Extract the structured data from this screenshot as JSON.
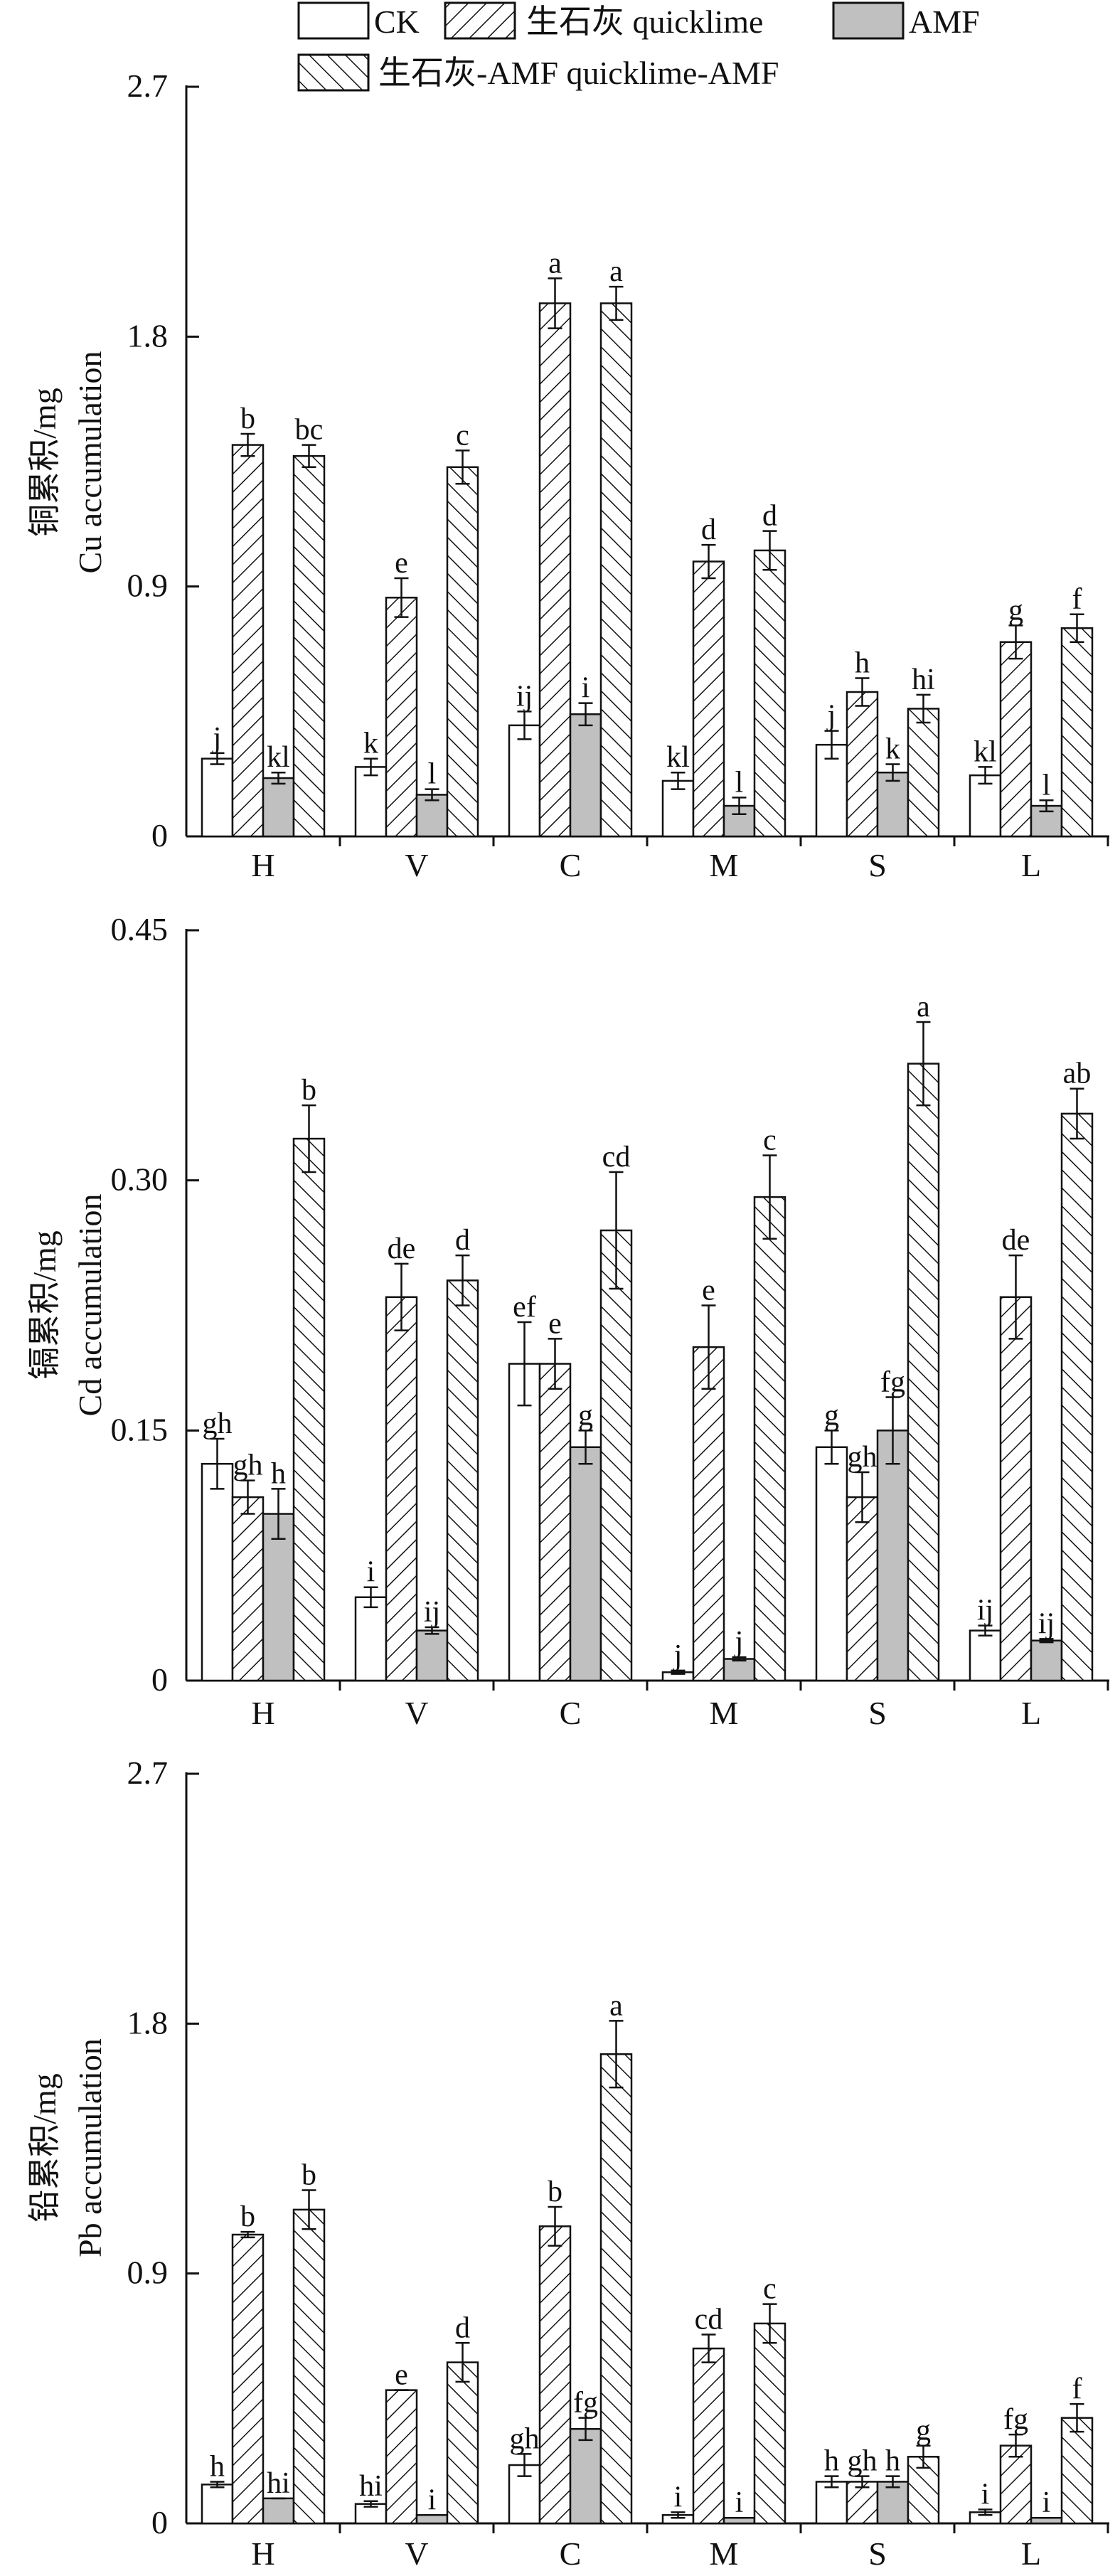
{
  "legend": {
    "items": [
      {
        "label": "CK",
        "fill": "white"
      },
      {
        "label": "生石灰 quicklime",
        "fill": "hatch-forward"
      },
      {
        "label": "AMF",
        "fill": "#c0c0c0"
      },
      {
        "label": "生石灰-AMF quicklime-AMF",
        "fill": "hatch-back"
      }
    ]
  },
  "colors": {
    "axis": "#111111",
    "amf": "#c0c0c0",
    "bar_stroke": "#111111"
  },
  "chart_data": [
    {
      "type": "bar",
      "ylabel_cn": "铜累积/mg",
      "ylabel_en": "Cu accumulation",
      "ylim": [
        0,
        2.7
      ],
      "yticks": [
        0,
        0.9,
        1.8,
        2.7
      ],
      "ytick_labels": [
        "0",
        "0.9",
        "1.8",
        "2.7"
      ],
      "categories": [
        "H",
        "V",
        "C",
        "M",
        "S",
        "L"
      ],
      "series": [
        {
          "name": "CK",
          "values": [
            0.28,
            0.25,
            0.4,
            0.2,
            0.33,
            0.22
          ],
          "errors": [
            0.02,
            0.03,
            0.05,
            0.03,
            0.05,
            0.03
          ],
          "letters": [
            "j",
            "k",
            "ij",
            "kl",
            "j",
            "kl"
          ]
        },
        {
          "name": "生石灰 quicklime",
          "values": [
            1.41,
            0.86,
            1.92,
            0.99,
            0.52,
            0.7
          ],
          "errors": [
            0.04,
            0.07,
            0.09,
            0.06,
            0.05,
            0.06
          ],
          "letters": [
            "b",
            "e",
            "a",
            "d",
            "h",
            "g"
          ]
        },
        {
          "name": "AMF",
          "values": [
            0.21,
            0.15,
            0.44,
            0.11,
            0.23,
            0.11
          ],
          "errors": [
            0.02,
            0.02,
            0.04,
            0.03,
            0.03,
            0.02
          ],
          "letters": [
            "kl",
            "l",
            "i",
            "l",
            "k",
            "l"
          ]
        },
        {
          "name": "生石灰-AMF quicklime-AMF",
          "values": [
            1.37,
            1.33,
            1.92,
            1.03,
            0.46,
            0.75
          ],
          "errors": [
            0.04,
            0.06,
            0.06,
            0.07,
            0.05,
            0.05
          ],
          "letters": [
            "bc",
            "c",
            "a",
            "d",
            "hi",
            "f"
          ]
        }
      ]
    },
    {
      "type": "bar",
      "ylabel_cn": "镉累积/mg",
      "ylabel_en": "Cd accumulation",
      "ylim": [
        0,
        0.45
      ],
      "yticks": [
        0,
        0.15,
        0.3,
        0.45
      ],
      "ytick_labels": [
        "0",
        "0.15",
        "0.30",
        "0.45"
      ],
      "categories": [
        "H",
        "V",
        "C",
        "M",
        "S",
        "L"
      ],
      "series": [
        {
          "name": "CK",
          "values": [
            0.13,
            0.05,
            0.19,
            0.005,
            0.14,
            0.03
          ],
          "errors": [
            0.015,
            0.006,
            0.025,
            0.001,
            0.01,
            0.003
          ],
          "letters": [
            "gh",
            "i",
            "ef",
            "j",
            "g",
            "ij"
          ]
        },
        {
          "name": "生石灰 quicklime",
          "values": [
            0.11,
            0.23,
            0.19,
            0.2,
            0.11,
            0.23
          ],
          "errors": [
            0.01,
            0.02,
            0.015,
            0.025,
            0.015,
            0.025
          ],
          "letters": [
            "gh",
            "de",
            "e",
            "e",
            "gh",
            "de"
          ]
        },
        {
          "name": "AMF",
          "values": [
            0.1,
            0.03,
            0.14,
            0.013,
            0.15,
            0.024
          ],
          "errors": [
            0.015,
            0.002,
            0.01,
            0.001,
            0.02,
            0.001
          ],
          "letters": [
            "h",
            "ij",
            "g",
            "j",
            "fg",
            "ij"
          ]
        },
        {
          "name": "生石灰-AMF quicklime-AMF",
          "values": [
            0.325,
            0.24,
            0.27,
            0.29,
            0.37,
            0.34
          ],
          "errors": [
            0.02,
            0.015,
            0.035,
            0.025,
            0.025,
            0.015
          ],
          "letters": [
            "b",
            "d",
            "cd",
            "c",
            "a",
            "ab"
          ]
        }
      ]
    },
    {
      "type": "bar",
      "ylabel_cn": "铅累积/mg",
      "ylabel_en": "Pb accumulation",
      "ylim": [
        0,
        2.7
      ],
      "yticks": [
        0,
        0.9,
        1.8,
        2.7
      ],
      "ytick_labels": [
        "0",
        "0.9",
        "1.8",
        "2.7"
      ],
      "categories": [
        "H",
        "V",
        "C",
        "M",
        "S",
        "L"
      ],
      "series": [
        {
          "name": "CK",
          "values": [
            0.14,
            0.07,
            0.21,
            0.03,
            0.15,
            0.04
          ],
          "errors": [
            0.01,
            0.01,
            0.04,
            0.01,
            0.02,
            0.01
          ],
          "letters": [
            "h",
            "hi",
            "gh",
            "i",
            "h",
            "i"
          ]
        },
        {
          "name": "生石灰 quicklime",
          "values": [
            1.04,
            0.48,
            1.07,
            0.63,
            0.15,
            0.28
          ],
          "errors": [
            0.01,
            0.0,
            0.07,
            0.05,
            0.02,
            0.04
          ],
          "letters": [
            "b",
            "e",
            "b",
            "cd",
            "gh",
            "fg"
          ]
        },
        {
          "name": "AMF",
          "values": [
            0.09,
            0.03,
            0.34,
            0.02,
            0.15,
            0.02
          ],
          "errors": [
            0.0,
            0.0,
            0.04,
            0.0,
            0.02,
            0.0
          ],
          "letters": [
            "hi",
            "i",
            "fg",
            "i",
            "h",
            "i"
          ]
        },
        {
          "name": "生石灰-AMF quicklime-AMF",
          "values": [
            1.13,
            0.58,
            1.69,
            0.72,
            0.24,
            0.38
          ],
          "errors": [
            0.07,
            0.07,
            0.12,
            0.07,
            0.04,
            0.05
          ],
          "letters": [
            "b",
            "d",
            "a",
            "c",
            "g",
            "f"
          ]
        }
      ]
    }
  ]
}
